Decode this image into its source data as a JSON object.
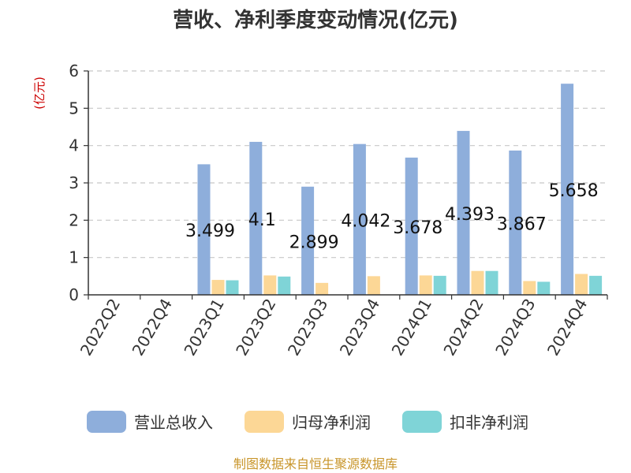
{
  "chart_data": {
    "type": "bar",
    "title": "营收、净利季度变动情况(亿元)",
    "unit_label": "(亿元)",
    "categories": [
      "2022Q2",
      "2022Q4",
      "2023Q1",
      "2023Q2",
      "2023Q3",
      "2023Q4",
      "2024Q1",
      "2024Q2",
      "2024Q3",
      "2024Q4"
    ],
    "series": [
      {
        "name": "营业总收入",
        "color": "#8eaedb",
        "values": [
          null,
          null,
          3.499,
          4.1,
          2.899,
          4.042,
          3.678,
          4.393,
          3.867,
          5.658
        ]
      },
      {
        "name": "归母净利润",
        "color": "#fcd796",
        "values": [
          null,
          null,
          0.4,
          0.52,
          0.32,
          0.5,
          0.52,
          0.64,
          0.37,
          0.56
        ]
      },
      {
        "name": "扣非净利润",
        "color": "#7fd4d7",
        "values": [
          null,
          null,
          0.39,
          0.49,
          null,
          null,
          0.51,
          0.64,
          0.35,
          0.51
        ]
      }
    ],
    "data_labels": [
      "",
      "",
      "3.499",
      "4.1",
      "2.899",
      "4.042",
      "3.678",
      "4.393",
      "3.867",
      "5.658"
    ],
    "ylim": [
      0,
      6
    ],
    "yticks": [
      "0",
      "1",
      "2",
      "3",
      "4",
      "5",
      "6"
    ],
    "grid": true,
    "legend_position": "bottom"
  },
  "source_note": "制图数据来自恒生聚源数据库"
}
